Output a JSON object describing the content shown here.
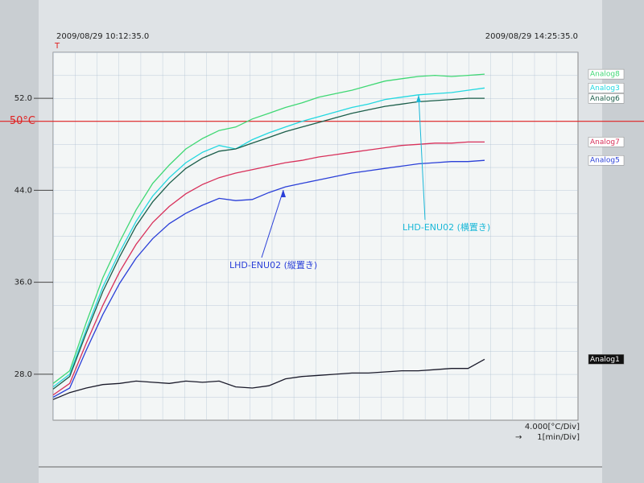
{
  "chart_data": {
    "type": "line",
    "start_time": "2009/08/29 10:12:35.0",
    "end_time": "2009/08/29 14:25:35.0",
    "axis_marker": "T",
    "y_scale_label": "4.000[°C/Div]",
    "x_scale_label": "1[min/Div]",
    "x": [
      0,
      8,
      16,
      24,
      32,
      40,
      48,
      56,
      64,
      72,
      80,
      88,
      96,
      104,
      112,
      120,
      128,
      136,
      144,
      152,
      160,
      168,
      176,
      184,
      192,
      200,
      208
    ],
    "xlim": [
      0,
      253
    ],
    "ylim": [
      24,
      56
    ],
    "yticks": [
      {
        "value": 28,
        "label": "28.0"
      },
      {
        "value": 36,
        "label": "36.0"
      },
      {
        "value": 44,
        "label": "44.0"
      },
      {
        "value": 52,
        "label": "52.0"
      }
    ],
    "reference_line": {
      "value": 50,
      "label": "50°C",
      "color": "#e02020"
    },
    "series": [
      {
        "name": "Analog8",
        "color": "#3fd874",
        "values": [
          27.2,
          28.3,
          32.5,
          36.4,
          39.5,
          42.3,
          44.6,
          46.2,
          47.6,
          48.5,
          49.2,
          49.5,
          50.2,
          50.7,
          51.2,
          51.6,
          52.1,
          52.4,
          52.7,
          53.1,
          53.5,
          53.7,
          53.9,
          54.0,
          53.9,
          54.0,
          54.1
        ]
      },
      {
        "name": "Analog3",
        "color": "#22d8e0",
        "values": [
          26.9,
          28.0,
          31.9,
          35.6,
          38.6,
          41.3,
          43.5,
          45.1,
          46.4,
          47.3,
          47.9,
          47.6,
          48.4,
          49.0,
          49.5,
          50.0,
          50.4,
          50.8,
          51.2,
          51.5,
          51.9,
          52.1,
          52.3,
          52.4,
          52.5,
          52.7,
          52.9
        ]
      },
      {
        "name": "Analog6",
        "color": "#1b5e4a",
        "values": [
          26.7,
          27.8,
          31.6,
          35.2,
          38.2,
          40.9,
          43.0,
          44.6,
          45.9,
          46.8,
          47.4,
          47.6,
          48.1,
          48.6,
          49.1,
          49.5,
          49.9,
          50.3,
          50.7,
          51.0,
          51.3,
          51.5,
          51.7,
          51.8,
          51.9,
          52.0,
          52.0
        ]
      },
      {
        "name": "Analog7",
        "color": "#d8305a",
        "values": [
          26.2,
          27.2,
          30.7,
          34.0,
          36.9,
          39.3,
          41.2,
          42.6,
          43.7,
          44.5,
          45.1,
          45.5,
          45.8,
          46.1,
          46.4,
          46.6,
          46.9,
          47.1,
          47.3,
          47.5,
          47.7,
          47.9,
          48.0,
          48.1,
          48.1,
          48.2,
          48.2
        ]
      },
      {
        "name": "Analog5",
        "color": "#2a3fd8",
        "values": [
          26.0,
          26.8,
          30.1,
          33.2,
          35.9,
          38.1,
          39.8,
          41.1,
          42.0,
          42.7,
          43.3,
          43.1,
          43.2,
          43.8,
          44.3,
          44.6,
          44.9,
          45.2,
          45.5,
          45.7,
          45.9,
          46.1,
          46.3,
          46.4,
          46.5,
          46.5,
          46.6
        ]
      },
      {
        "name": "Analog1",
        "color": "#1a1a2a",
        "values": [
          25.8,
          26.4,
          26.8,
          27.1,
          27.2,
          27.4,
          27.3,
          27.2,
          27.4,
          27.3,
          27.4,
          26.9,
          26.8,
          27.0,
          27.6,
          27.8,
          27.9,
          28.0,
          28.1,
          28.1,
          28.2,
          28.3,
          28.3,
          28.4,
          28.5,
          28.5,
          29.3
        ]
      }
    ],
    "annotations": [
      {
        "text": "LHD-ENU02 (横置き)",
        "color": "#1ab8d8"
      },
      {
        "text": "LHD-ENU02 (縦置き)",
        "color": "#2a3fd8"
      }
    ]
  }
}
